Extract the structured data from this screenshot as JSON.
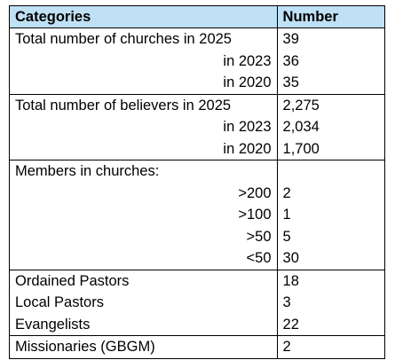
{
  "table": {
    "headers": [
      "Categories",
      "Number"
    ],
    "rows": [
      {
        "label": "Total number of churches in 2025",
        "value": "39",
        "align": "left",
        "group_start": true
      },
      {
        "label": "in 2023",
        "value": "36",
        "align": "right",
        "group_start": false
      },
      {
        "label": "in 2020",
        "value": "35",
        "align": "right",
        "group_start": false
      },
      {
        "label": "Total number of believers in 2025",
        "value": "2,275",
        "align": "left",
        "group_start": true
      },
      {
        "label": "in 2023",
        "value": "2,034",
        "align": "right",
        "group_start": false
      },
      {
        "label": "in 2020",
        "value": "1,700",
        "align": "right",
        "group_start": false
      },
      {
        "label": "Members in churches:",
        "value": "",
        "align": "left",
        "group_start": true
      },
      {
        "label": ">200",
        "value": "2",
        "align": "right",
        "group_start": false
      },
      {
        "label": ">100",
        "value": "1",
        "align": "right",
        "group_start": false
      },
      {
        "label": ">50",
        "value": "5",
        "align": "right",
        "group_start": false
      },
      {
        "label": "<50",
        "value": "30",
        "align": "right",
        "group_start": false
      },
      {
        "label": "Ordained Pastors",
        "value": "18",
        "align": "left",
        "group_start": true
      },
      {
        "label": "Local Pastors",
        "value": "3",
        "align": "left",
        "group_start": false
      },
      {
        "label": "Evangelists",
        "value": "22",
        "align": "left",
        "group_start": false
      },
      {
        "label": "Missionaries (GBGM)",
        "value": "2",
        "align": "left",
        "group_start": true
      }
    ]
  },
  "colors": {
    "header_background": "#bfe0f5",
    "border": "#000000"
  }
}
